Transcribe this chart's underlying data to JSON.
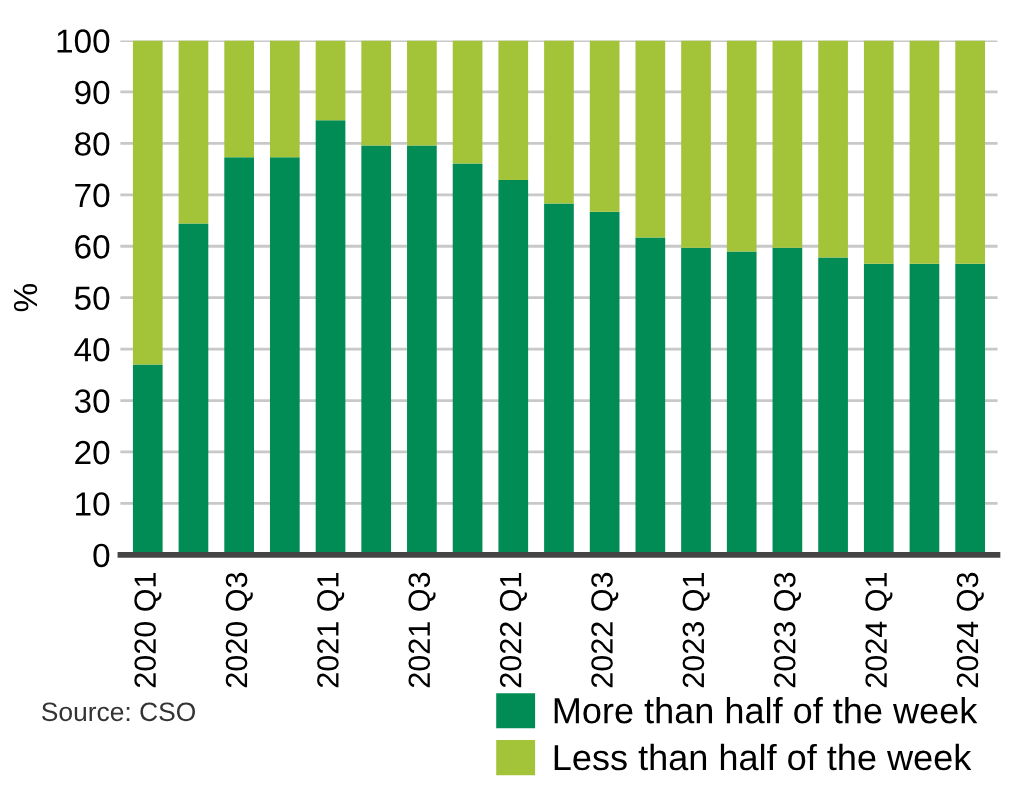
{
  "chart_data": {
    "type": "bar",
    "stacked": true,
    "ylabel": "%",
    "categories": [
      "2020 Q1",
      null,
      "2020 Q3",
      null,
      "2021 Q1",
      null,
      "2021 Q3",
      null,
      "2022 Q1",
      null,
      "2022 Q3",
      null,
      "2023 Q1",
      null,
      "2023 Q3",
      null,
      "2024 Q1",
      null,
      "2024 Q3"
    ],
    "series": [
      {
        "name": "More than half of the week",
        "color": "#008c54",
        "values": [
          37.0,
          64.4,
          77.3,
          77.3,
          84.5,
          79.6,
          79.6,
          76.1,
          72.9,
          68.3,
          66.7,
          61.7,
          59.7,
          59.0,
          59.7,
          57.8,
          56.6,
          56.6,
          56.6
        ]
      },
      {
        "name": "Less than half of the week",
        "color": "#a3c339",
        "values": [
          63.0,
          35.6,
          22.7,
          22.7,
          15.5,
          20.4,
          20.4,
          23.9,
          27.1,
          31.7,
          33.3,
          38.3,
          40.3,
          41.0,
          40.3,
          42.2,
          43.4,
          43.4,
          43.4
        ]
      }
    ],
    "ylim": [
      0,
      100
    ],
    "yticks": [
      0,
      10,
      20,
      30,
      40,
      50,
      60,
      70,
      80,
      90,
      100
    ],
    "grid": "y",
    "legend": "bottom right",
    "annotations": [
      "Source: CSO"
    ]
  }
}
